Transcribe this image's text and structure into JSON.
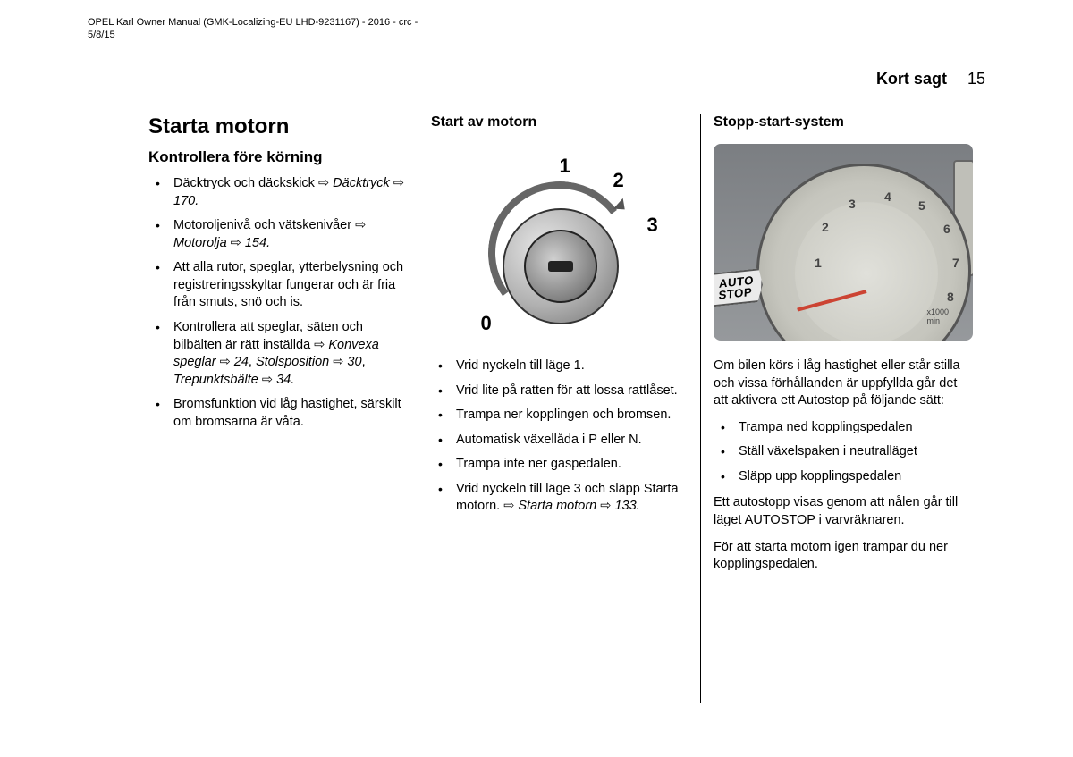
{
  "meta": {
    "line1": "OPEL Karl Owner Manual (GMK-Localizing-EU LHD-9231167) - 2016 - crc -",
    "line2": "5/8/15"
  },
  "header": {
    "section": "Kort sagt",
    "page": "15"
  },
  "col1": {
    "h1": "Starta motorn",
    "h2": "Kontrollera före körning",
    "items": [
      {
        "text": "Däcktryck och däckskick ",
        "ref": "Däcktryck",
        "refpage": "170"
      },
      {
        "text": "Motoroljenivå och vätskenivåer ",
        "ref": "Motorolja",
        "refpage": "154"
      },
      {
        "text": "Att alla rutor, speglar, ytterbelysning och registreringsskyltar fungerar och är fria från smuts, snö och is."
      },
      {
        "text": "Kontrollera att speglar, säten och bilbälten är rätt inställda ",
        "ref": "Konvexa speglar",
        "refpage": "24",
        "ref2": "Stolsposition",
        "ref2page": "30",
        "ref3": "Trepunktsbälte",
        "ref3page": "34"
      },
      {
        "text": "Bromsfunktion vid låg hastighet, särskilt om bromsarna är våta."
      }
    ]
  },
  "col2": {
    "h3": "Start av motorn",
    "ignition": {
      "labels": [
        "0",
        "1",
        "2",
        "3"
      ]
    },
    "items": [
      {
        "text": "Vrid nyckeln till läge 1."
      },
      {
        "text": "Vrid lite på ratten för att lossa rattlåset."
      },
      {
        "text": "Trampa ner kopplingen och bromsen."
      },
      {
        "text": "Automatisk växellåda i P eller N."
      },
      {
        "text": "Trampa inte ner gaspedalen."
      },
      {
        "text": "Vrid nyckeln till läge 3 och släpp Starta motorn. ",
        "ref": "Starta motorn",
        "refpage": "133"
      }
    ]
  },
  "col3": {
    "h3": "Stopp-start-system",
    "tacho": {
      "numbers": [
        "1",
        "2",
        "3",
        "4",
        "5",
        "6",
        "7",
        "8"
      ],
      "unit": "x1000\nmin",
      "flag": "AUTO\nSTOP"
    },
    "p1": "Om bilen körs i låg hastighet eller står stilla och vissa förhållanden är uppfyllda går det att aktivera ett Autostop på följande sätt:",
    "items": [
      {
        "text": "Trampa ned kopplingspedalen"
      },
      {
        "text": "Ställ växelspaken i neutralläget"
      },
      {
        "text": "Släpp upp kopplingspedalen"
      }
    ],
    "p2": "Ett autostopp visas genom att nålen går till läget AUTOSTOP i varvräknaren.",
    "p3": "För att starta motorn igen trampar du ner kopplingspedalen."
  },
  "glyph": {
    "arrow": "⇨",
    "page_arrow": "⇨"
  }
}
